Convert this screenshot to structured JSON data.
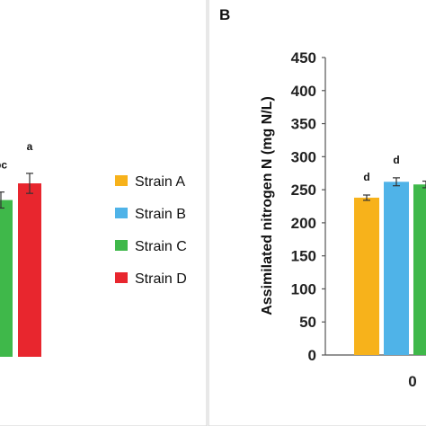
{
  "chart_data": [
    {
      "panel_label": "",
      "type": "bar",
      "categories": [
        ""
      ],
      "series": [
        {
          "name": "Strain C",
          "values": [
            235
          ],
          "error": [
            12
          ],
          "significance": "bc"
        },
        {
          "name": "Strain D",
          "values": [
            260
          ],
          "error": [
            15
          ],
          "significance": "a"
        }
      ],
      "ylabel": "",
      "ylim": [
        0,
        450
      ],
      "note": "Left panel is cropped; only the tops of the Strain C and Strain D bars are visible."
    },
    {
      "panel_label": "B",
      "type": "bar",
      "categories": [
        "0"
      ],
      "series": [
        {
          "name": "Strain A",
          "values": [
            238
          ],
          "error": [
            4
          ],
          "significance": "d"
        },
        {
          "name": "Strain B",
          "values": [
            262
          ],
          "error": [
            6
          ],
          "significance": "d"
        },
        {
          "name": "Strain C",
          "values": [
            258
          ],
          "error": [
            5
          ],
          "significance": ""
        }
      ],
      "ylabel": "Assimilated nitrogen N (mg N/L)",
      "ylim": [
        0,
        450
      ],
      "yticks": [
        0,
        50,
        100,
        150,
        200,
        250,
        300,
        350,
        400,
        450
      ]
    }
  ],
  "legend": [
    {
      "label": "Strain A",
      "color": "#f7b21b"
    },
    {
      "label": "Strain B",
      "color": "#4fb3e8"
    },
    {
      "label": "Strain C",
      "color": "#3fb84a"
    },
    {
      "label": "Strain D",
      "color": "#e8262e"
    }
  ]
}
